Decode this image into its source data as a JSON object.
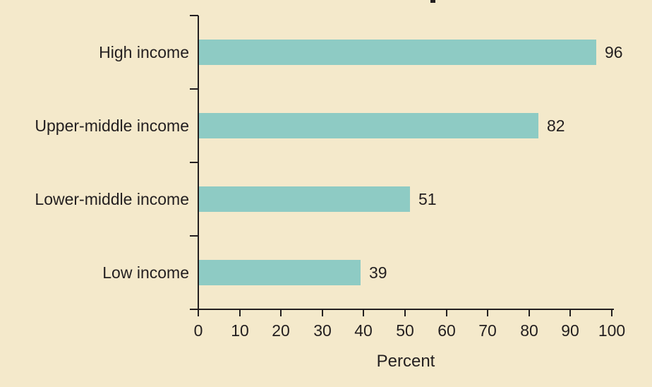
{
  "chart_data": {
    "type": "bar",
    "orientation": "horizontal",
    "title": "",
    "categories": [
      "High income",
      "Upper-middle income",
      "Lower-middle income",
      "Low income"
    ],
    "values": [
      96,
      82,
      51,
      39
    ],
    "data_labels": [
      "96",
      "82",
      "51",
      "39"
    ],
    "xlabel": "Percent",
    "ylabel": "",
    "xlim": [
      0,
      100
    ],
    "xticks": [
      0,
      10,
      20,
      30,
      40,
      50,
      60,
      70,
      80,
      90,
      100
    ],
    "grid": "off",
    "legend": "none"
  },
  "colors": {
    "background": "#f4e9cb",
    "bar": "#8ecbc4",
    "axis": "#231f20",
    "text": "#231f20"
  }
}
